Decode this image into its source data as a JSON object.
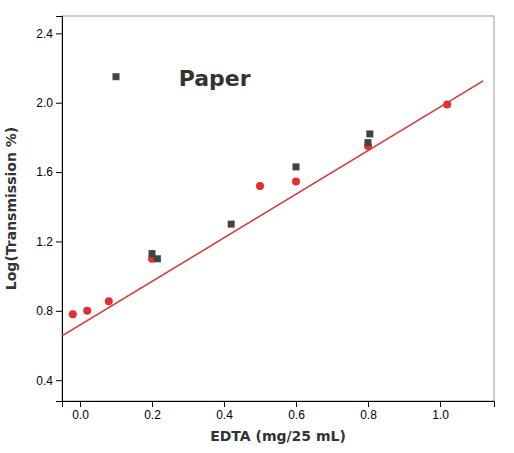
{
  "chart_data": {
    "type": "scatter",
    "xlabel": "EDTA (mg/25 mL)",
    "ylabel": "Log(Transmission %)",
    "annotation": "Paper",
    "xlim": [
      -0.05,
      1.15
    ],
    "ylim": [
      0.28,
      2.5
    ],
    "xticks": [
      {
        "value": 0.0,
        "label": "0.0"
      },
      0.2,
      0.4,
      0.6,
      0.8,
      {
        "value": 1.0,
        "label": "1.0"
      }
    ],
    "yticks": [
      0.4,
      0.8,
      1.2,
      1.6,
      {
        "value": 2.0,
        "label": "2.0"
      },
      2.4
    ],
    "series": [
      {
        "type": "line",
        "color": "#e03030",
        "x": [
          -0.05,
          1.12
        ],
        "values": [
          0.65515,
          2.12584
        ]
      },
      {
        "type": "scatter",
        "marker": "circle",
        "color": "#e03030",
        "x": [
          -0.02,
          0.02,
          0.08,
          0.2,
          0.5,
          0.6,
          0.8,
          1.02
        ],
        "values": [
          0.78,
          0.8,
          0.855,
          1.1,
          1.52,
          1.545,
          1.75,
          1.99
        ]
      },
      {
        "type": "scatter",
        "marker": "square",
        "color": "#444444",
        "x": [
          0.1,
          0.2,
          0.215,
          0.42,
          0.6,
          0.8,
          0.805
        ],
        "values": [
          2.15,
          1.13,
          1.1,
          1.3,
          1.63,
          1.77,
          1.82
        ]
      }
    ]
  }
}
